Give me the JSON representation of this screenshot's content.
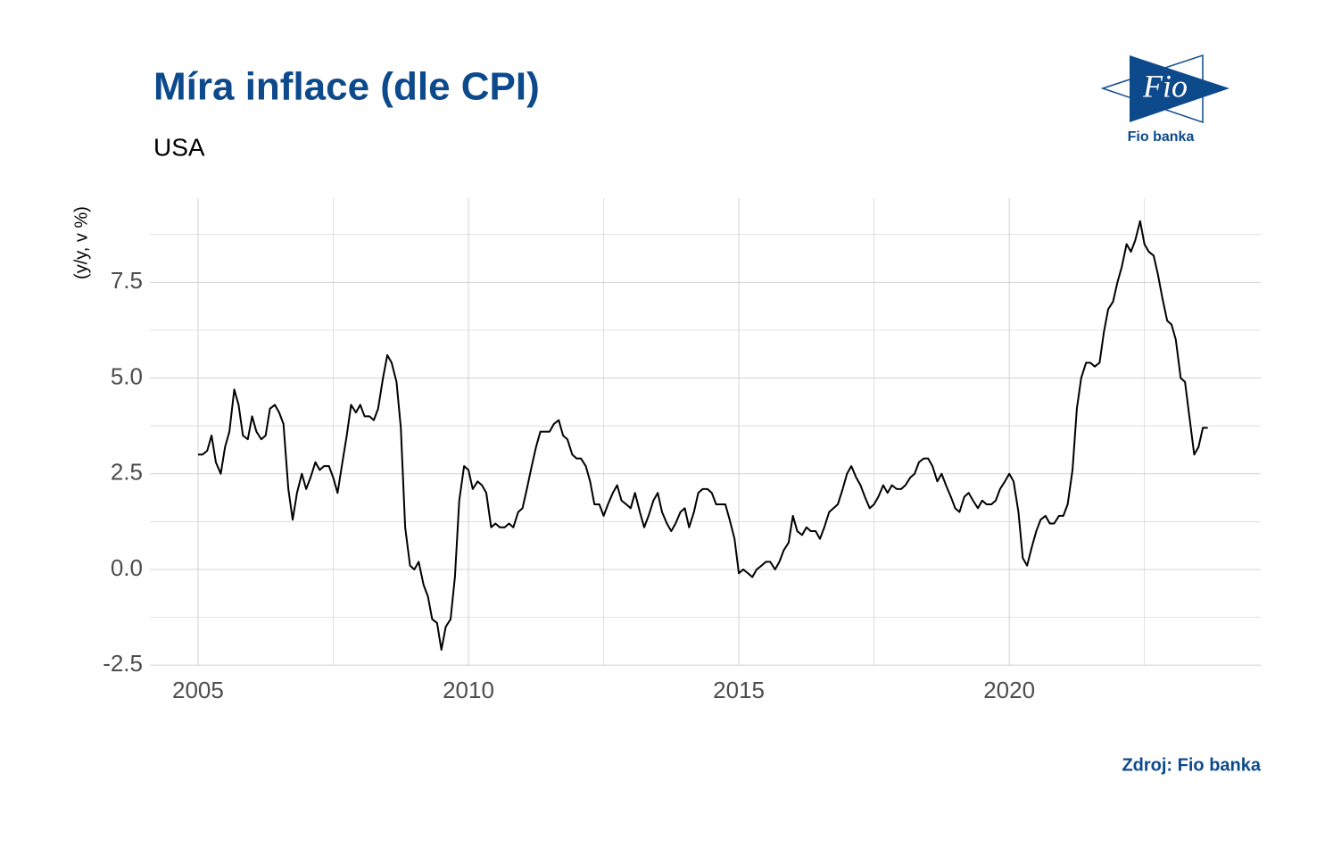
{
  "chart_data": {
    "type": "line",
    "title": "Míra inflace (dle CPI)",
    "subtitle": "USA",
    "y_label": "(y/y, v %)",
    "source": "Zdroj: Fio banka",
    "logo_text": "Fio",
    "logo_caption": "Fio banka",
    "color": "#000000",
    "grid": true,
    "xlim": [
      2004.11,
      2024.65
    ],
    "ylim": [
      -2.52,
      9.7
    ],
    "xticks": [
      2005,
      2010,
      2015,
      2020
    ],
    "yticks": [
      {
        "value": -2.5,
        "label": "-2.5"
      },
      {
        "value": 0,
        "label": "0.0"
      },
      {
        "value": 2.5,
        "label": "2.5"
      },
      {
        "value": 5,
        "label": "5.0"
      },
      {
        "value": 7.5,
        "label": "7.5"
      }
    ],
    "x": [
      2005,
      2005.08,
      2005.17,
      2005.25,
      2005.33,
      2005.42,
      2005.5,
      2005.58,
      2005.67,
      2005.75,
      2005.83,
      2005.92,
      2006,
      2006.08,
      2006.17,
      2006.25,
      2006.33,
      2006.42,
      2006.5,
      2006.58,
      2006.67,
      2006.75,
      2006.83,
      2006.92,
      2007,
      2007.08,
      2007.17,
      2007.25,
      2007.33,
      2007.42,
      2007.5,
      2007.58,
      2007.67,
      2007.75,
      2007.83,
      2007.92,
      2008,
      2008.08,
      2008.17,
      2008.25,
      2008.33,
      2008.42,
      2008.5,
      2008.58,
      2008.67,
      2008.75,
      2008.83,
      2008.92,
      2009,
      2009.08,
      2009.17,
      2009.25,
      2009.33,
      2009.42,
      2009.5,
      2009.58,
      2009.67,
      2009.75,
      2009.83,
      2009.92,
      2010,
      2010.08,
      2010.17,
      2010.25,
      2010.33,
      2010.42,
      2010.5,
      2010.58,
      2010.67,
      2010.75,
      2010.83,
      2010.92,
      2011,
      2011.08,
      2011.17,
      2011.25,
      2011.33,
      2011.42,
      2011.5,
      2011.58,
      2011.67,
      2011.75,
      2011.83,
      2011.92,
      2012,
      2012.08,
      2012.17,
      2012.25,
      2012.33,
      2012.42,
      2012.5,
      2012.58,
      2012.67,
      2012.75,
      2012.83,
      2012.92,
      2013,
      2013.08,
      2013.17,
      2013.25,
      2013.33,
      2013.42,
      2013.5,
      2013.58,
      2013.67,
      2013.75,
      2013.83,
      2013.92,
      2014,
      2014.08,
      2014.17,
      2014.25,
      2014.33,
      2014.42,
      2014.5,
      2014.58,
      2014.67,
      2014.75,
      2014.83,
      2014.92,
      2015,
      2015.08,
      2015.17,
      2015.25,
      2015.33,
      2015.42,
      2015.5,
      2015.58,
      2015.67,
      2015.75,
      2015.83,
      2015.92,
      2016,
      2016.08,
      2016.17,
      2016.25,
      2016.33,
      2016.42,
      2016.5,
      2016.58,
      2016.67,
      2016.75,
      2016.83,
      2016.92,
      2017,
      2017.08,
      2017.17,
      2017.25,
      2017.33,
      2017.42,
      2017.5,
      2017.58,
      2017.67,
      2017.75,
      2017.83,
      2017.92,
      2018,
      2018.08,
      2018.17,
      2018.25,
      2018.33,
      2018.42,
      2018.5,
      2018.58,
      2018.67,
      2018.75,
      2018.83,
      2018.92,
      2019,
      2019.08,
      2019.17,
      2019.25,
      2019.33,
      2019.42,
      2019.5,
      2019.58,
      2019.67,
      2019.75,
      2019.83,
      2019.92,
      2020,
      2020.08,
      2020.17,
      2020.25,
      2020.33,
      2020.42,
      2020.5,
      2020.58,
      2020.67,
      2020.75,
      2020.83,
      2020.92,
      2021,
      2021.08,
      2021.17,
      2021.25,
      2021.33,
      2021.42,
      2021.5,
      2021.58,
      2021.67,
      2021.75,
      2021.83,
      2021.92,
      2022,
      2022.08,
      2022.17,
      2022.25,
      2022.33,
      2022.42,
      2022.5,
      2022.58,
      2022.67,
      2022.75,
      2022.83,
      2022.92,
      2023,
      2023.08,
      2023.17,
      2023.25,
      2023.33,
      2023.42,
      2023.5,
      2023.58,
      2023.67
    ],
    "values": [
      3.0,
      3.0,
      3.1,
      3.5,
      2.8,
      2.5,
      3.2,
      3.6,
      4.7,
      4.3,
      3.5,
      3.4,
      4.0,
      3.6,
      3.4,
      3.5,
      4.2,
      4.3,
      4.1,
      3.8,
      2.1,
      1.3,
      2.0,
      2.5,
      2.1,
      2.4,
      2.8,
      2.6,
      2.7,
      2.7,
      2.4,
      2.0,
      2.8,
      3.5,
      4.3,
      4.1,
      4.3,
      4.0,
      4.0,
      3.9,
      4.2,
      5.0,
      5.6,
      5.4,
      4.9,
      3.7,
      1.1,
      0.1,
      0.0,
      0.2,
      -0.4,
      -0.7,
      -1.3,
      -1.4,
      -2.1,
      -1.5,
      -1.3,
      -0.2,
      1.8,
      2.7,
      2.6,
      2.1,
      2.3,
      2.2,
      2.0,
      1.1,
      1.2,
      1.1,
      1.1,
      1.2,
      1.1,
      1.5,
      1.6,
      2.1,
      2.7,
      3.2,
      3.6,
      3.6,
      3.6,
      3.8,
      3.9,
      3.5,
      3.4,
      3.0,
      2.9,
      2.9,
      2.7,
      2.3,
      1.7,
      1.7,
      1.4,
      1.7,
      2.0,
      2.2,
      1.8,
      1.7,
      1.6,
      2.0,
      1.5,
      1.1,
      1.4,
      1.8,
      2.0,
      1.5,
      1.2,
      1.0,
      1.2,
      1.5,
      1.6,
      1.1,
      1.5,
      2.0,
      2.1,
      2.1,
      2.0,
      1.7,
      1.7,
      1.7,
      1.3,
      0.8,
      -0.1,
      0.0,
      -0.1,
      -0.2,
      0.0,
      0.1,
      0.2,
      0.2,
      0.0,
      0.2,
      0.5,
      0.7,
      1.4,
      1.0,
      0.9,
      1.1,
      1.0,
      1.0,
      0.8,
      1.1,
      1.5,
      1.6,
      1.7,
      2.1,
      2.5,
      2.7,
      2.4,
      2.2,
      1.9,
      1.6,
      1.7,
      1.9,
      2.2,
      2.0,
      2.2,
      2.1,
      2.1,
      2.2,
      2.4,
      2.5,
      2.8,
      2.9,
      2.9,
      2.7,
      2.3,
      2.5,
      2.2,
      1.9,
      1.6,
      1.5,
      1.9,
      2.0,
      1.8,
      1.6,
      1.8,
      1.7,
      1.7,
      1.8,
      2.1,
      2.3,
      2.5,
      2.3,
      1.5,
      0.3,
      0.1,
      0.6,
      1.0,
      1.3,
      1.4,
      1.2,
      1.2,
      1.4,
      1.4,
      1.7,
      2.6,
      4.2,
      5.0,
      5.4,
      5.4,
      5.3,
      5.4,
      6.2,
      6.8,
      7.0,
      7.5,
      7.9,
      8.5,
      8.3,
      8.6,
      9.1,
      8.5,
      8.3,
      8.2,
      7.7,
      7.1,
      6.5,
      6.4,
      6.0,
      5.0,
      4.9,
      4.0,
      3.0,
      3.2,
      3.7,
      3.7
    ]
  }
}
